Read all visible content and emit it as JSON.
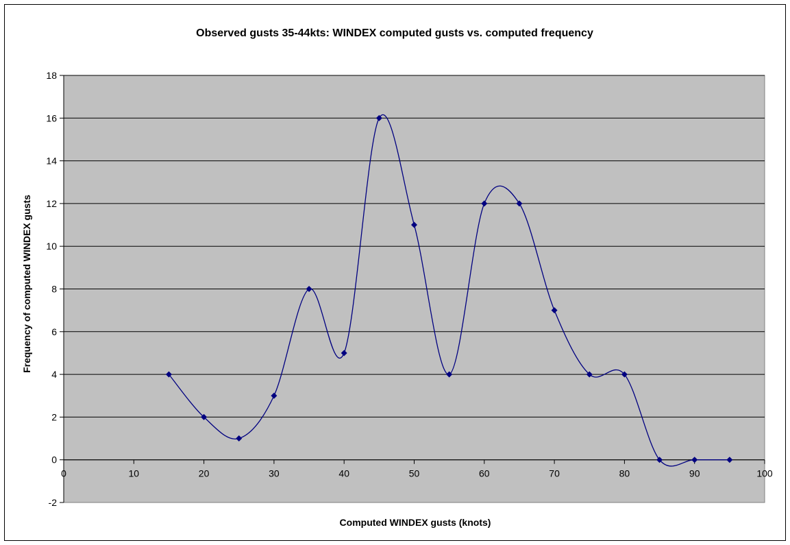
{
  "chart_data": {
    "type": "scatter",
    "title": "Observed gusts 35-44kts: WINDEX computed gusts vs. computed frequency",
    "xlabel": "Computed WINDEX gusts (knots)",
    "ylabel": "Frequency of computed WINDEX gusts",
    "xlim": [
      0,
      100
    ],
    "ylim": [
      -2,
      18
    ],
    "x_ticks": [
      0,
      10,
      20,
      30,
      40,
      50,
      60,
      70,
      80,
      90,
      100
    ],
    "y_ticks": [
      -2,
      0,
      2,
      4,
      6,
      8,
      10,
      12,
      14,
      16,
      18
    ],
    "grid": "horizontal",
    "smoothed_line": true,
    "background": "#c0c0c0",
    "series_color": "#000080",
    "x": [
      15,
      20,
      25,
      30,
      35,
      40,
      45,
      50,
      55,
      60,
      65,
      70,
      75,
      80,
      85,
      90,
      95
    ],
    "y": [
      4,
      2,
      1,
      3,
      8,
      5,
      16,
      11,
      4,
      12,
      12,
      7,
      4,
      4,
      0,
      0,
      0
    ]
  }
}
